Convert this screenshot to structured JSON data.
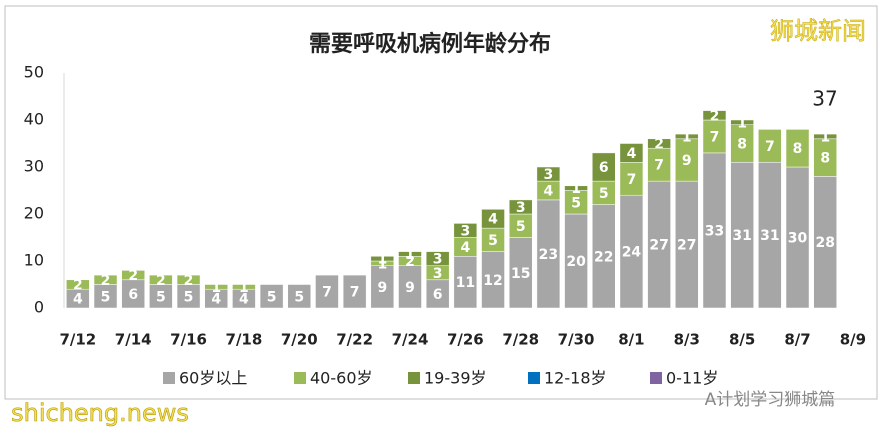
{
  "chart_data": {
    "type": "stacked-bar",
    "title": "需要呼吸机病例年龄分布",
    "annotation": "37",
    "categories": [
      "7/12",
      null,
      "7/14",
      null,
      "7/16",
      null,
      "7/18",
      null,
      "7/20",
      null,
      "7/22",
      null,
      "7/24",
      null,
      "7/26",
      null,
      "7/28",
      null,
      "7/30",
      null,
      "8/1",
      null,
      "8/3",
      null,
      "8/5",
      null,
      "8/7",
      null,
      "8/9"
    ],
    "series": [
      {
        "name": "60岁以上",
        "color": "#a6a6a6",
        "values": [
          4,
          5,
          6,
          5,
          5,
          4,
          4,
          5,
          5,
          7,
          7,
          9,
          9,
          6,
          11,
          12,
          15,
          23,
          20,
          22,
          24,
          27,
          27,
          33,
          31,
          31,
          30,
          28,
          null
        ]
      },
      {
        "name": "40-60岁",
        "color": "#9bbb59",
        "values": [
          2,
          2,
          2,
          2,
          2,
          1,
          1,
          null,
          null,
          null,
          null,
          1,
          2,
          3,
          4,
          5,
          5,
          4,
          5,
          5,
          7,
          7,
          9,
          7,
          8,
          7,
          8,
          8,
          null
        ]
      },
      {
        "name": "19-39岁",
        "color": "#77933c",
        "values": [
          null,
          null,
          null,
          null,
          null,
          null,
          null,
          null,
          null,
          null,
          null,
          1,
          1,
          3,
          3,
          4,
          3,
          3,
          1,
          6,
          4,
          2,
          1,
          2,
          1,
          null,
          null,
          1,
          null
        ]
      },
      {
        "name": "12-18岁",
        "color": "#0070c0",
        "values": [
          null,
          null,
          null,
          null,
          null,
          null,
          null,
          null,
          null,
          null,
          null,
          null,
          null,
          null,
          null,
          null,
          null,
          null,
          null,
          null,
          null,
          null,
          null,
          null,
          null,
          null,
          null,
          null,
          null
        ]
      },
      {
        "name": "0-11岁",
        "color": "#8064a2",
        "values": [
          null,
          null,
          null,
          null,
          null,
          null,
          null,
          null,
          null,
          null,
          null,
          null,
          null,
          null,
          null,
          null,
          null,
          null,
          null,
          null,
          null,
          null,
          null,
          null,
          null,
          null,
          null,
          null,
          null
        ]
      }
    ],
    "ylim": [
      0,
      50
    ],
    "yticks": [
      0,
      10,
      20,
      30,
      40,
      50
    ],
    "grid": false
  },
  "watermarks": {
    "top_right": "狮城新闻",
    "bottom_left": "shicheng.news",
    "bottom_right": "A计划学习狮城篇"
  }
}
